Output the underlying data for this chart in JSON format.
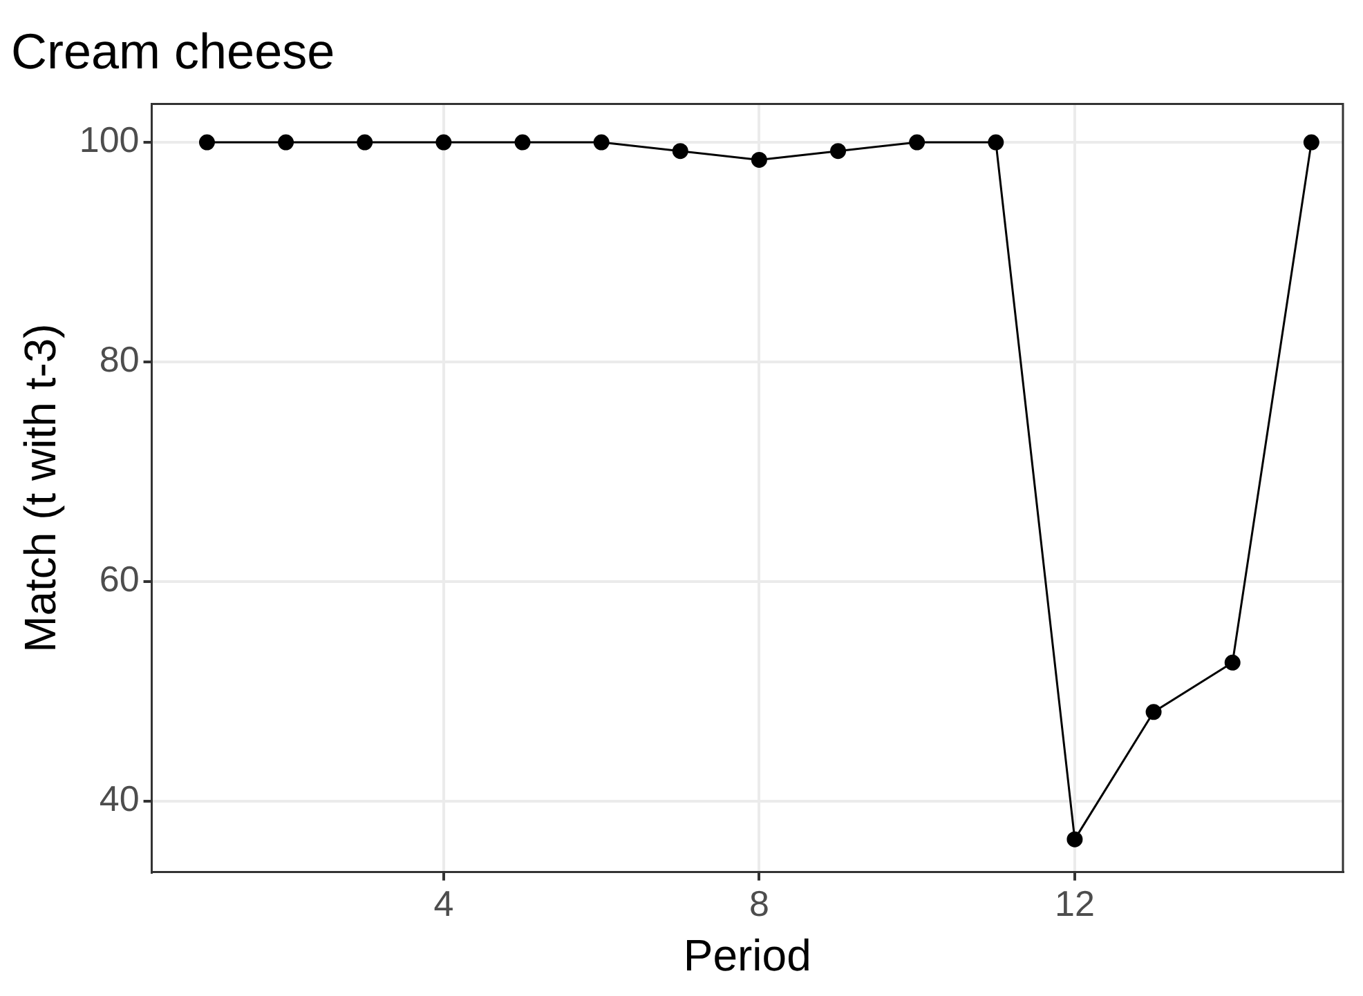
{
  "chart_data": {
    "type": "line",
    "title": "Cream cheese",
    "xlabel": "Period",
    "ylabel": "Match (t with t-3)",
    "x": [
      1,
      2,
      3,
      4,
      5,
      6,
      7,
      8,
      9,
      10,
      11,
      12,
      13,
      14,
      15
    ],
    "series": [
      {
        "color": "#000000",
        "values": [
          100,
          100,
          100,
          100,
          100,
          100,
          99.2,
          98.4,
          99.2,
          100,
          100,
          36.5,
          48.1,
          52.6,
          100
        ]
      }
    ],
    "xlim": [
      0.3,
      15.4
    ],
    "xticks": [
      4,
      8,
      12
    ],
    "ylim": [
      33.5,
      103.5
    ],
    "yticks": [
      40,
      60,
      80,
      100
    ],
    "grid": true,
    "legend": false,
    "marker": "circle",
    "line_style": "solid"
  }
}
